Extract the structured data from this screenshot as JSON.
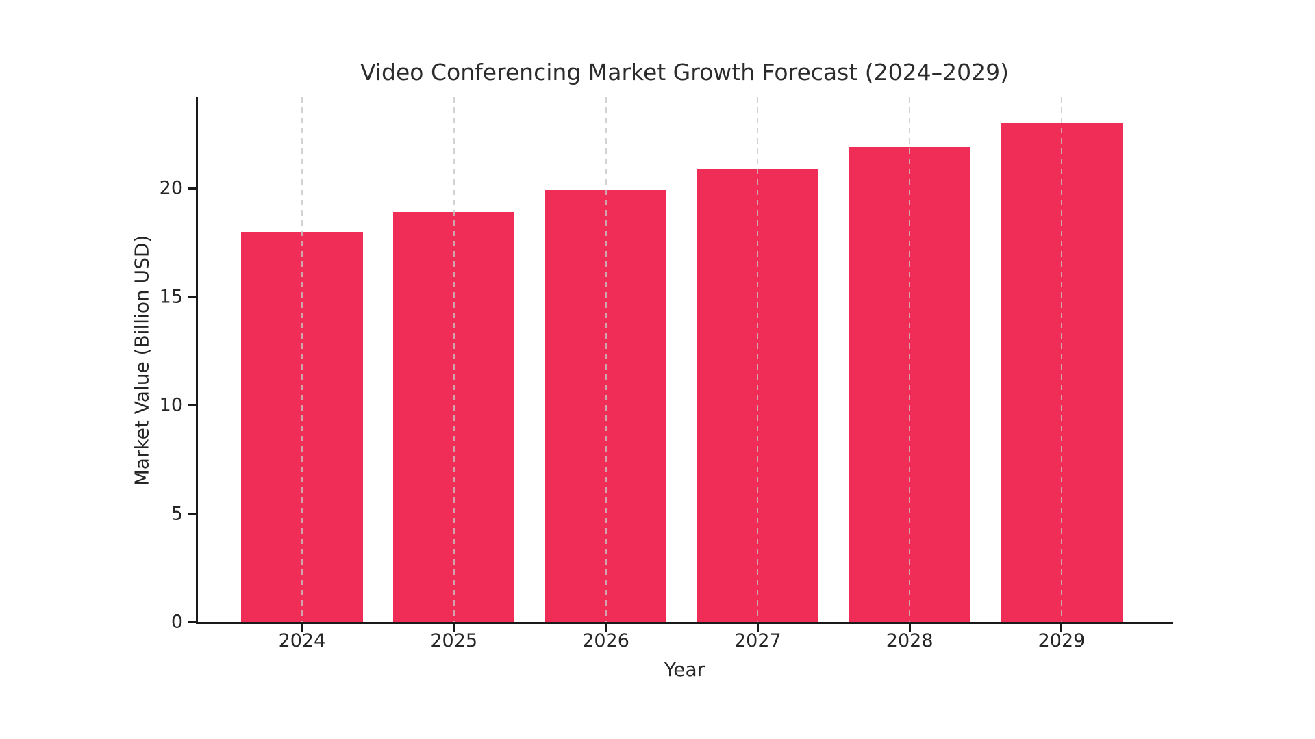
{
  "chart_data": {
    "type": "bar",
    "title": "Video Conferencing Market Growth Forecast (2024–2029)",
    "xlabel": "Year",
    "ylabel": "Market Value (Billion USD)",
    "categories": [
      "2024",
      "2025",
      "2026",
      "2027",
      "2028",
      "2029"
    ],
    "values": [
      18.0,
      18.9,
      19.9,
      20.9,
      21.9,
      23.0
    ],
    "ylim": [
      0,
      24.2
    ],
    "yticks": [
      0,
      5,
      10,
      15,
      20
    ],
    "bar_color": "#EF2D56",
    "grid": {
      "axis": "x",
      "style": "dashed",
      "color": "#c6c6c6",
      "on_top_of_bars": true
    },
    "legend": "none",
    "background_color": "#ffffff",
    "axis_color": "#1a1a1a"
  }
}
